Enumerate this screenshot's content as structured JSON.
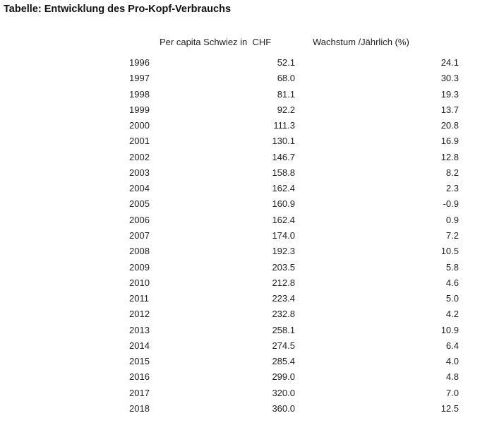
{
  "header": {
    "title": "Tabelle: Entwicklung des Pro-Kopf-Verbrauchs"
  },
  "table": {
    "columns": [
      "Per capita Schwiez in  CHF",
      "Wachstum /Jährlich (%)"
    ],
    "rows": [
      [
        "1996",
        "52.1",
        "24.1"
      ],
      [
        "1997",
        "68.0",
        "30.3"
      ],
      [
        "1998",
        "81.1",
        "19.3"
      ],
      [
        "1999",
        "92.2",
        "13.7"
      ],
      [
        "2000",
        "111.3",
        "20.8"
      ],
      [
        "2001",
        "130.1",
        "16.9"
      ],
      [
        "2002",
        "146.7",
        "12.8"
      ],
      [
        "2003",
        "158.8",
        "8.2"
      ],
      [
        "2004",
        "162.4",
        "2.3"
      ],
      [
        "2005",
        "160.9",
        "-0.9"
      ],
      [
        "2006",
        "162.4",
        "0.9"
      ],
      [
        "2007",
        "174.0",
        "7.2"
      ],
      [
        "2008",
        "192.3",
        "10.5"
      ],
      [
        "2009",
        "203.5",
        "5.8"
      ],
      [
        "2010",
        "212.8",
        "4.6"
      ],
      [
        "2011",
        "223.4",
        "5.0"
      ],
      [
        "2012",
        "232.8",
        "4.2"
      ],
      [
        "2013",
        "258.1",
        "10.9"
      ],
      [
        "2014",
        "274.5",
        "6.4"
      ],
      [
        "2015",
        "285.4",
        "4.0"
      ],
      [
        "2016",
        "299.0",
        "4.8"
      ],
      [
        "2017",
        "320.0",
        "7.0"
      ],
      [
        "2018",
        "360.0",
        "12.5"
      ]
    ]
  }
}
